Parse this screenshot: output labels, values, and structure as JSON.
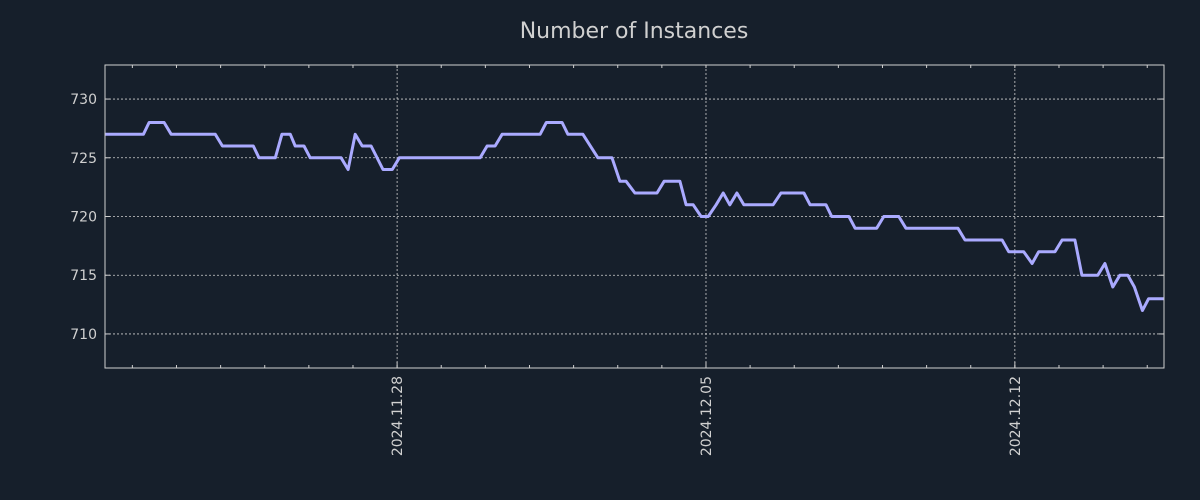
{
  "chart_data": {
    "type": "line",
    "title": "Number of Instances",
    "xlabel": "",
    "ylabel": "",
    "x_unit": "days relative to 2024.11.28",
    "xlim": [
      -6.62,
      17.38
    ],
    "ylim": [
      707.1,
      732.9
    ],
    "grid": true,
    "x_ticks": [
      {
        "value": 0,
        "label": "2024.11.28"
      },
      {
        "value": 7,
        "label": "2024.12.05"
      },
      {
        "value": 14,
        "label": "2024.12.12"
      }
    ],
    "y_ticks": [
      {
        "value": 710,
        "label": "710"
      },
      {
        "value": 715,
        "label": "715"
      },
      {
        "value": 720,
        "label": "720"
      },
      {
        "value": 725,
        "label": "725"
      },
      {
        "value": 730,
        "label": "730"
      }
    ],
    "colors": {
      "background": "#161f2b",
      "line": "#aaaaff",
      "axis": "#d0d0d0"
    },
    "series": [
      {
        "name": "Number of Instances",
        "points": [
          [
            -6.62,
            727
          ],
          [
            -5.75,
            727
          ],
          [
            -5.62,
            728
          ],
          [
            -5.28,
            728
          ],
          [
            -5.12,
            727
          ],
          [
            -4.12,
            727
          ],
          [
            -3.96,
            726
          ],
          [
            -3.26,
            726
          ],
          [
            -3.13,
            725
          ],
          [
            -2.76,
            725
          ],
          [
            -2.61,
            727
          ],
          [
            -2.42,
            727
          ],
          [
            -2.31,
            726
          ],
          [
            -2.11,
            726
          ],
          [
            -1.97,
            725
          ],
          [
            -1.27,
            725
          ],
          [
            -1.11,
            724
          ],
          [
            -0.95,
            727
          ],
          [
            -0.79,
            726
          ],
          [
            -0.59,
            726
          ],
          [
            -0.32,
            724
          ],
          [
            -0.11,
            724
          ],
          [
            0.05,
            725
          ],
          [
            1.88,
            725
          ],
          [
            2.04,
            726
          ],
          [
            2.22,
            726
          ],
          [
            2.38,
            727
          ],
          [
            3.24,
            727
          ],
          [
            3.38,
            728
          ],
          [
            3.74,
            728
          ],
          [
            3.87,
            727
          ],
          [
            4.21,
            727
          ],
          [
            4.55,
            725
          ],
          [
            4.87,
            725
          ],
          [
            5.05,
            723
          ],
          [
            5.19,
            723
          ],
          [
            5.39,
            722
          ],
          [
            5.89,
            722
          ],
          [
            6.05,
            723
          ],
          [
            6.41,
            723
          ],
          [
            6.55,
            721
          ],
          [
            6.71,
            721
          ],
          [
            6.89,
            720
          ],
          [
            7.05,
            720
          ],
          [
            7.23,
            721
          ],
          [
            7.39,
            722
          ],
          [
            7.54,
            721
          ],
          [
            7.7,
            722
          ],
          [
            7.86,
            721
          ],
          [
            8.52,
            721
          ],
          [
            8.7,
            722
          ],
          [
            9.22,
            722
          ],
          [
            9.36,
            721
          ],
          [
            9.72,
            721
          ],
          [
            9.85,
            720
          ],
          [
            10.24,
            720
          ],
          [
            10.38,
            719
          ],
          [
            10.87,
            719
          ],
          [
            11.03,
            720
          ],
          [
            11.37,
            720
          ],
          [
            11.53,
            719
          ],
          [
            12.71,
            719
          ],
          [
            12.87,
            718
          ],
          [
            13.71,
            718
          ],
          [
            13.86,
            717
          ],
          [
            14.2,
            717
          ],
          [
            14.39,
            716
          ],
          [
            14.54,
            717
          ],
          [
            14.91,
            717
          ],
          [
            15.07,
            718
          ],
          [
            15.36,
            718
          ],
          [
            15.52,
            715
          ],
          [
            15.88,
            715
          ],
          [
            16.04,
            716
          ],
          [
            16.22,
            714
          ],
          [
            16.38,
            715
          ],
          [
            16.56,
            715
          ],
          [
            16.71,
            714
          ],
          [
            16.89,
            712
          ],
          [
            17.03,
            713
          ],
          [
            17.38,
            713
          ]
        ]
      }
    ]
  }
}
